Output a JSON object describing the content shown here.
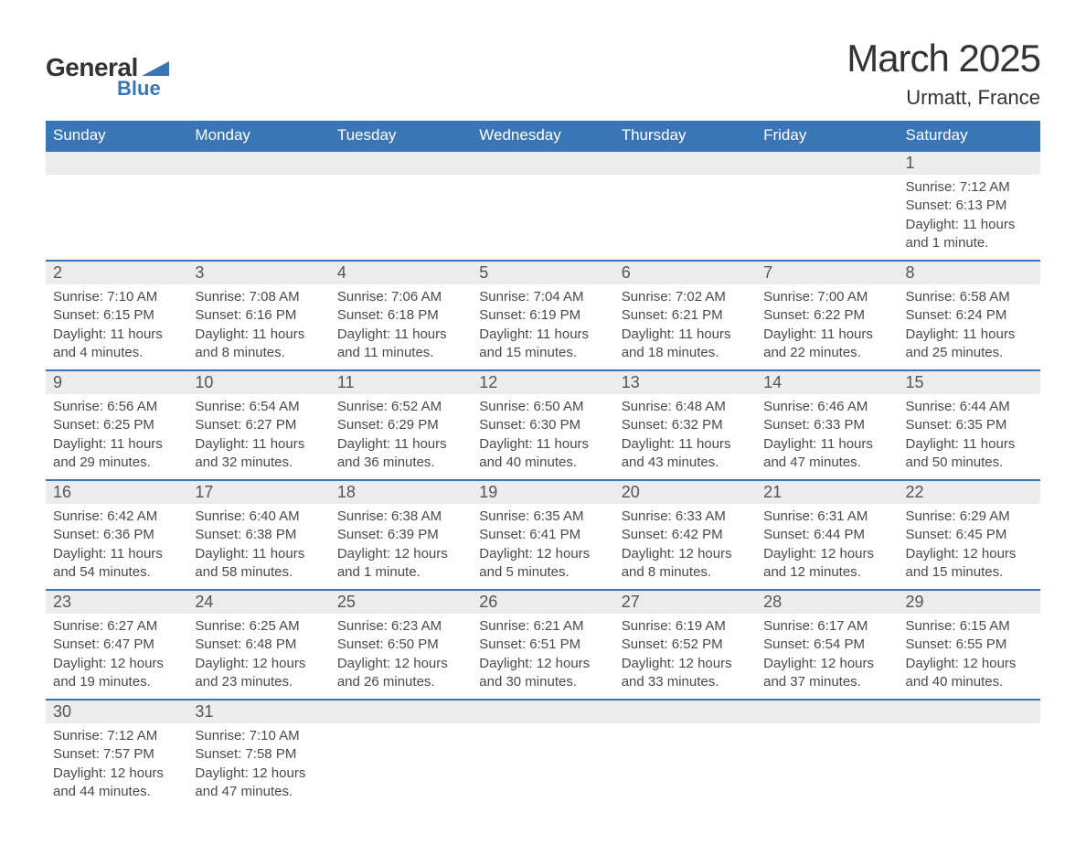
{
  "logo": {
    "text1": "General",
    "text2": "Blue"
  },
  "title": "March 2025",
  "location": "Urmatt, France",
  "colors": {
    "header_bg": "#3a76b5",
    "header_text": "#ffffff",
    "daynum_bg": "#ececec",
    "border": "#3a76b5",
    "body_text": "#4a4a4a",
    "page_bg": "#ffffff"
  },
  "fonts": {
    "title_size": 42,
    "location_size": 22,
    "dayheader_size": 17,
    "daynum_size": 18,
    "cell_size": 15
  },
  "day_headers": [
    "Sunday",
    "Monday",
    "Tuesday",
    "Wednesday",
    "Thursday",
    "Friday",
    "Saturday"
  ],
  "weeks": [
    [
      null,
      null,
      null,
      null,
      null,
      null,
      {
        "n": "1",
        "sr": "Sunrise: 7:12 AM",
        "ss": "Sunset: 6:13 PM",
        "d1": "Daylight: 11 hours",
        "d2": "and 1 minute."
      }
    ],
    [
      {
        "n": "2",
        "sr": "Sunrise: 7:10 AM",
        "ss": "Sunset: 6:15 PM",
        "d1": "Daylight: 11 hours",
        "d2": "and 4 minutes."
      },
      {
        "n": "3",
        "sr": "Sunrise: 7:08 AM",
        "ss": "Sunset: 6:16 PM",
        "d1": "Daylight: 11 hours",
        "d2": "and 8 minutes."
      },
      {
        "n": "4",
        "sr": "Sunrise: 7:06 AM",
        "ss": "Sunset: 6:18 PM",
        "d1": "Daylight: 11 hours",
        "d2": "and 11 minutes."
      },
      {
        "n": "5",
        "sr": "Sunrise: 7:04 AM",
        "ss": "Sunset: 6:19 PM",
        "d1": "Daylight: 11 hours",
        "d2": "and 15 minutes."
      },
      {
        "n": "6",
        "sr": "Sunrise: 7:02 AM",
        "ss": "Sunset: 6:21 PM",
        "d1": "Daylight: 11 hours",
        "d2": "and 18 minutes."
      },
      {
        "n": "7",
        "sr": "Sunrise: 7:00 AM",
        "ss": "Sunset: 6:22 PM",
        "d1": "Daylight: 11 hours",
        "d2": "and 22 minutes."
      },
      {
        "n": "8",
        "sr": "Sunrise: 6:58 AM",
        "ss": "Sunset: 6:24 PM",
        "d1": "Daylight: 11 hours",
        "d2": "and 25 minutes."
      }
    ],
    [
      {
        "n": "9",
        "sr": "Sunrise: 6:56 AM",
        "ss": "Sunset: 6:25 PM",
        "d1": "Daylight: 11 hours",
        "d2": "and 29 minutes."
      },
      {
        "n": "10",
        "sr": "Sunrise: 6:54 AM",
        "ss": "Sunset: 6:27 PM",
        "d1": "Daylight: 11 hours",
        "d2": "and 32 minutes."
      },
      {
        "n": "11",
        "sr": "Sunrise: 6:52 AM",
        "ss": "Sunset: 6:29 PM",
        "d1": "Daylight: 11 hours",
        "d2": "and 36 minutes."
      },
      {
        "n": "12",
        "sr": "Sunrise: 6:50 AM",
        "ss": "Sunset: 6:30 PM",
        "d1": "Daylight: 11 hours",
        "d2": "and 40 minutes."
      },
      {
        "n": "13",
        "sr": "Sunrise: 6:48 AM",
        "ss": "Sunset: 6:32 PM",
        "d1": "Daylight: 11 hours",
        "d2": "and 43 minutes."
      },
      {
        "n": "14",
        "sr": "Sunrise: 6:46 AM",
        "ss": "Sunset: 6:33 PM",
        "d1": "Daylight: 11 hours",
        "d2": "and 47 minutes."
      },
      {
        "n": "15",
        "sr": "Sunrise: 6:44 AM",
        "ss": "Sunset: 6:35 PM",
        "d1": "Daylight: 11 hours",
        "d2": "and 50 minutes."
      }
    ],
    [
      {
        "n": "16",
        "sr": "Sunrise: 6:42 AM",
        "ss": "Sunset: 6:36 PM",
        "d1": "Daylight: 11 hours",
        "d2": "and 54 minutes."
      },
      {
        "n": "17",
        "sr": "Sunrise: 6:40 AM",
        "ss": "Sunset: 6:38 PM",
        "d1": "Daylight: 11 hours",
        "d2": "and 58 minutes."
      },
      {
        "n": "18",
        "sr": "Sunrise: 6:38 AM",
        "ss": "Sunset: 6:39 PM",
        "d1": "Daylight: 12 hours",
        "d2": "and 1 minute."
      },
      {
        "n": "19",
        "sr": "Sunrise: 6:35 AM",
        "ss": "Sunset: 6:41 PM",
        "d1": "Daylight: 12 hours",
        "d2": "and 5 minutes."
      },
      {
        "n": "20",
        "sr": "Sunrise: 6:33 AM",
        "ss": "Sunset: 6:42 PM",
        "d1": "Daylight: 12 hours",
        "d2": "and 8 minutes."
      },
      {
        "n": "21",
        "sr": "Sunrise: 6:31 AM",
        "ss": "Sunset: 6:44 PM",
        "d1": "Daylight: 12 hours",
        "d2": "and 12 minutes."
      },
      {
        "n": "22",
        "sr": "Sunrise: 6:29 AM",
        "ss": "Sunset: 6:45 PM",
        "d1": "Daylight: 12 hours",
        "d2": "and 15 minutes."
      }
    ],
    [
      {
        "n": "23",
        "sr": "Sunrise: 6:27 AM",
        "ss": "Sunset: 6:47 PM",
        "d1": "Daylight: 12 hours",
        "d2": "and 19 minutes."
      },
      {
        "n": "24",
        "sr": "Sunrise: 6:25 AM",
        "ss": "Sunset: 6:48 PM",
        "d1": "Daylight: 12 hours",
        "d2": "and 23 minutes."
      },
      {
        "n": "25",
        "sr": "Sunrise: 6:23 AM",
        "ss": "Sunset: 6:50 PM",
        "d1": "Daylight: 12 hours",
        "d2": "and 26 minutes."
      },
      {
        "n": "26",
        "sr": "Sunrise: 6:21 AM",
        "ss": "Sunset: 6:51 PM",
        "d1": "Daylight: 12 hours",
        "d2": "and 30 minutes."
      },
      {
        "n": "27",
        "sr": "Sunrise: 6:19 AM",
        "ss": "Sunset: 6:52 PM",
        "d1": "Daylight: 12 hours",
        "d2": "and 33 minutes."
      },
      {
        "n": "28",
        "sr": "Sunrise: 6:17 AM",
        "ss": "Sunset: 6:54 PM",
        "d1": "Daylight: 12 hours",
        "d2": "and 37 minutes."
      },
      {
        "n": "29",
        "sr": "Sunrise: 6:15 AM",
        "ss": "Sunset: 6:55 PM",
        "d1": "Daylight: 12 hours",
        "d2": "and 40 minutes."
      }
    ],
    [
      {
        "n": "30",
        "sr": "Sunrise: 7:12 AM",
        "ss": "Sunset: 7:57 PM",
        "d1": "Daylight: 12 hours",
        "d2": "and 44 minutes."
      },
      {
        "n": "31",
        "sr": "Sunrise: 7:10 AM",
        "ss": "Sunset: 7:58 PM",
        "d1": "Daylight: 12 hours",
        "d2": "and 47 minutes."
      },
      null,
      null,
      null,
      null,
      null
    ]
  ]
}
